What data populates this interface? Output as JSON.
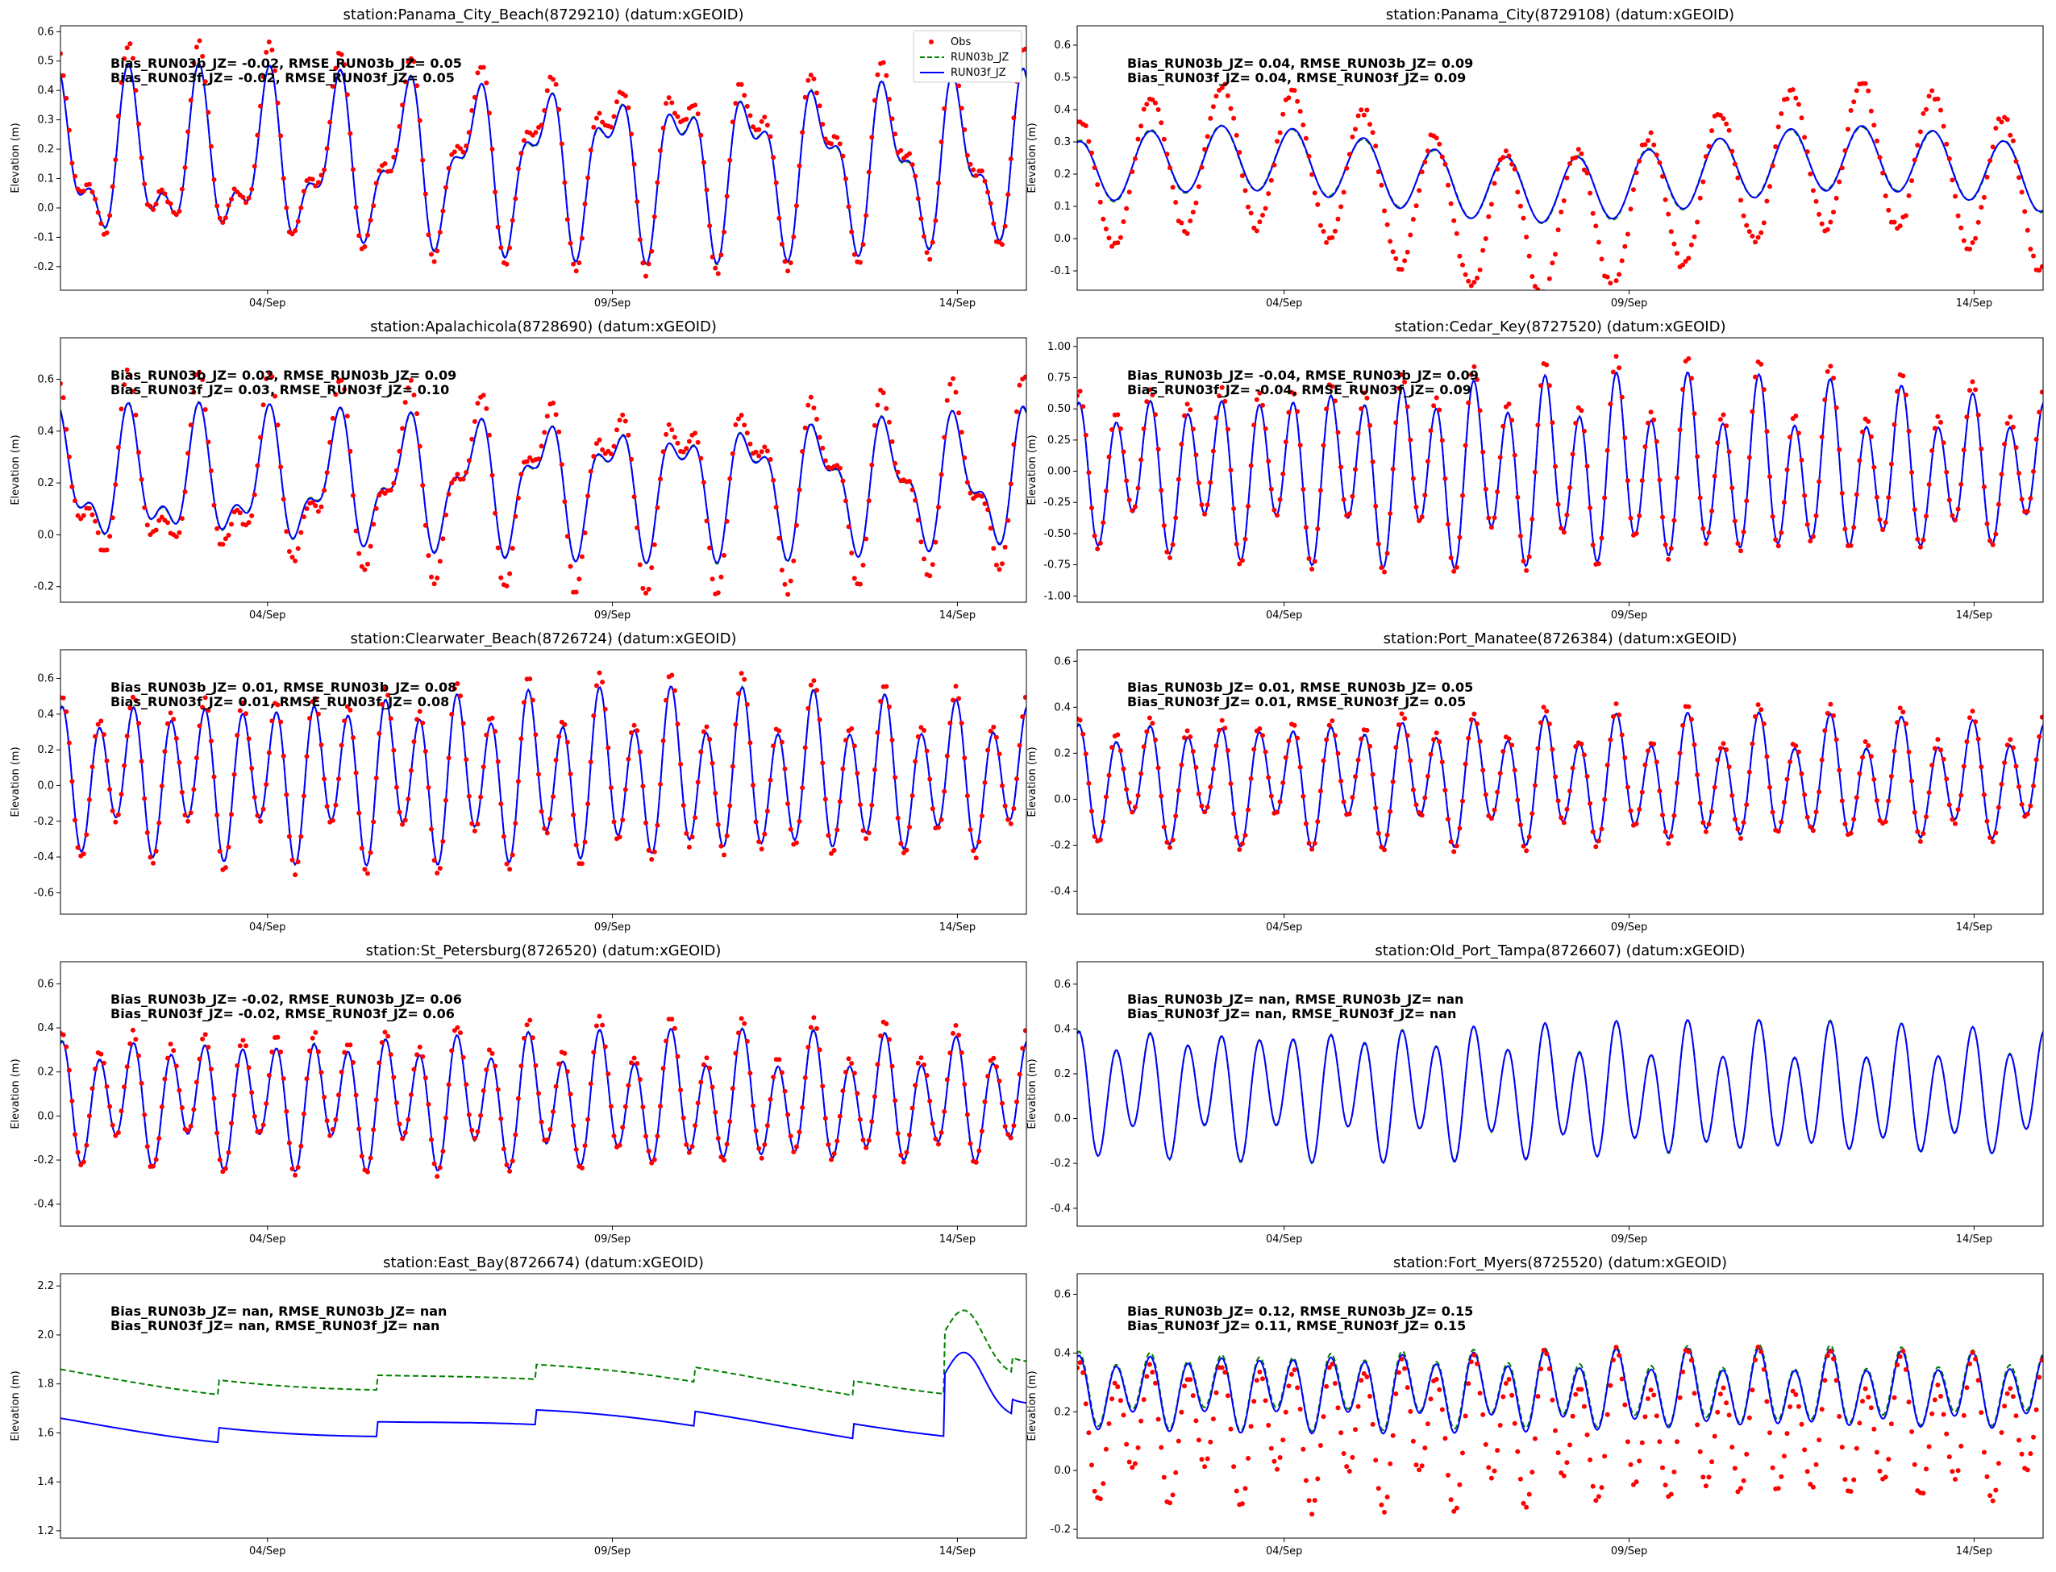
{
  "figure": {
    "legend": [
      {
        "name": "Obs",
        "style": "points",
        "color": "#ff0000"
      },
      {
        "name": "RUN03b_JZ",
        "style": "dashed",
        "color": "#008000"
      },
      {
        "name": "RUN03f_JZ",
        "style": "solid",
        "color": "#0000ff"
      }
    ],
    "x_tick_labels": [
      "04/Sep",
      "09/Sep",
      "14/Sep"
    ],
    "ylabel": "Elevation (m)"
  },
  "chart_data": [
    {
      "type": "line",
      "title": "station:Panama_City_Beach(8729210) (datum:xGEOID)",
      "xlabel": "",
      "ylabel": "Elevation (m)",
      "x_range_days": [
        1.0,
        15.0
      ],
      "x_ticks": [
        {
          "day": 4,
          "label": "04/Sep"
        },
        {
          "day": 9,
          "label": "09/Sep"
        },
        {
          "day": 14,
          "label": "14/Sep"
        }
      ],
      "ylim": [
        -0.28,
        0.62
      ],
      "yticks": [
        -0.2,
        -0.1,
        0.0,
        0.1,
        0.2,
        0.3,
        0.4,
        0.5,
        0.6
      ],
      "stats": [
        "Bias_RUN03b_JZ= -0.02, RMSE_RUN03b_JZ=  0.05",
        "Bias_RUN03f_JZ= -0.02, RMSE_RUN03f_JZ=  0.05"
      ],
      "legend": "top-right",
      "series_params": {
        "mean": 0.15,
        "amp": 0.22,
        "amp_growth": 0.0,
        "tide": "mixed",
        "obs_offset": 0.02,
        "obs_scale": 1.15,
        "b_offset": 0.0,
        "has_obs": true,
        "seed": 1
      }
    },
    {
      "type": "line",
      "title": "station:Panama_City(8729108) (datum:xGEOID)",
      "xlabel": "",
      "ylabel": "Elevation (m)",
      "x_range_days": [
        1.0,
        15.0
      ],
      "x_ticks": [
        {
          "day": 4,
          "label": "04/Sep"
        },
        {
          "day": 9,
          "label": "09/Sep"
        },
        {
          "day": 14,
          "label": "14/Sep"
        }
      ],
      "ylim": [
        -0.16,
        0.66
      ],
      "yticks": [
        -0.1,
        0.0,
        0.1,
        0.2,
        0.3,
        0.4,
        0.5,
        0.6
      ],
      "stats": [
        "Bias_RUN03b_JZ=  0.04, RMSE_RUN03b_JZ=  0.09",
        "Bias_RUN03f_JZ=  0.04, RMSE_RUN03f_JZ=  0.09"
      ],
      "legend": "none",
      "series_params": {
        "mean": 0.2,
        "amp": 0.1,
        "amp_growth": 0.0,
        "tide": "diurnal",
        "obs_offset": -0.05,
        "obs_scale": 2.2,
        "b_offset": 0.0,
        "has_obs": true,
        "seed": 2
      }
    },
    {
      "type": "line",
      "title": "station:Apalachicola(8728690) (datum:xGEOID)",
      "xlabel": "",
      "ylabel": "Elevation (m)",
      "x_range_days": [
        1.0,
        15.0
      ],
      "x_ticks": [
        {
          "day": 4,
          "label": "04/Sep"
        },
        {
          "day": 9,
          "label": "09/Sep"
        },
        {
          "day": 14,
          "label": "14/Sep"
        }
      ],
      "ylim": [
        -0.26,
        0.76
      ],
      "yticks": [
        -0.2,
        0.0,
        0.2,
        0.4,
        0.6
      ],
      "stats": [
        "Bias_RUN03b_JZ=  0.02, RMSE_RUN03b_JZ=  0.09",
        "Bias_RUN03f_JZ=  0.03, RMSE_RUN03f_JZ=  0.10"
      ],
      "legend": "none",
      "series_params": {
        "mean": 0.2,
        "amp": 0.2,
        "amp_growth": 0.0,
        "tide": "mixed",
        "obs_offset": 0.0,
        "obs_scale": 1.4,
        "b_offset": 0.0,
        "has_obs": true,
        "seed": 3
      }
    },
    {
      "type": "line",
      "title": "station:Cedar_Key(8727520) (datum:xGEOID)",
      "xlabel": "",
      "ylabel": "Elevation (m)",
      "x_range_days": [
        1.0,
        15.0
      ],
      "x_ticks": [
        {
          "day": 4,
          "label": "04/Sep"
        },
        {
          "day": 9,
          "label": "09/Sep"
        },
        {
          "day": 14,
          "label": "14/Sep"
        }
      ],
      "ylim": [
        -1.05,
        1.07
      ],
      "yticks": [
        -1.0,
        -0.75,
        -0.5,
        -0.25,
        0.0,
        0.25,
        0.5,
        0.75,
        1.0
      ],
      "stats": [
        "Bias_RUN03b_JZ= -0.04, RMSE_RUN03b_JZ=  0.09",
        "Bias_RUN03f_JZ= -0.04, RMSE_RUN03f_JZ=  0.09"
      ],
      "legend": "none",
      "series_params": {
        "mean": 0.0,
        "amp": 0.45,
        "amp_growth": 0.35,
        "tide": "semi",
        "obs_offset": 0.04,
        "obs_scale": 1.1,
        "b_offset": 0.0,
        "has_obs": true,
        "seed": 4
      }
    },
    {
      "type": "line",
      "title": "station:Clearwater_Beach(8726724) (datum:xGEOID)",
      "xlabel": "",
      "ylabel": "Elevation (m)",
      "x_range_days": [
        1.0,
        15.0
      ],
      "x_ticks": [
        {
          "day": 4,
          "label": "04/Sep"
        },
        {
          "day": 9,
          "label": "09/Sep"
        },
        {
          "day": 14,
          "label": "14/Sep"
        }
      ],
      "ylim": [
        -0.72,
        0.76
      ],
      "yticks": [
        -0.6,
        -0.4,
        -0.2,
        0.0,
        0.2,
        0.4,
        0.6
      ],
      "stats": [
        "Bias_RUN03b_JZ=  0.01, RMSE_RUN03b_JZ=  0.08",
        "Bias_RUN03f_JZ=  0.01, RMSE_RUN03f_JZ=  0.08"
      ],
      "legend": "none",
      "series_params": {
        "mean": 0.05,
        "amp": 0.32,
        "amp_growth": 0.2,
        "tide": "semi",
        "obs_offset": 0.01,
        "obs_scale": 1.12,
        "b_offset": 0.0,
        "has_obs": true,
        "seed": 5
      }
    },
    {
      "type": "line",
      "title": "station:Port_Manatee(8726384) (datum:xGEOID)",
      "xlabel": "",
      "ylabel": "Elevation (m)",
      "x_range_days": [
        1.0,
        15.0
      ],
      "x_ticks": [
        {
          "day": 4,
          "label": "04/Sep"
        },
        {
          "day": 9,
          "label": "09/Sep"
        },
        {
          "day": 14,
          "label": "14/Sep"
        }
      ],
      "ylim": [
        -0.5,
        0.65
      ],
      "yticks": [
        -0.4,
        -0.2,
        0.0,
        0.2,
        0.4,
        0.6
      ],
      "stats": [
        "Bias_RUN03b_JZ=  0.01, RMSE_RUN03b_JZ=  0.05",
        "Bias_RUN03f_JZ=  0.01, RMSE_RUN03f_JZ=  0.05"
      ],
      "legend": "none",
      "series_params": {
        "mean": 0.08,
        "amp": 0.2,
        "amp_growth": 0.12,
        "tide": "semi",
        "obs_offset": 0.01,
        "obs_scale": 1.08,
        "b_offset": 0.0,
        "has_obs": true,
        "seed": 6
      }
    },
    {
      "type": "line",
      "title": "station:St_Petersburg(8726520) (datum:xGEOID)",
      "xlabel": "",
      "ylabel": "Elevation (m)",
      "x_range_days": [
        1.0,
        15.0
      ],
      "x_ticks": [
        {
          "day": 4,
          "label": "04/Sep"
        },
        {
          "day": 9,
          "label": "09/Sep"
        },
        {
          "day": 14,
          "label": "14/Sep"
        }
      ],
      "ylim": [
        -0.5,
        0.7
      ],
      "yticks": [
        -0.4,
        -0.2,
        0.0,
        0.2,
        0.4,
        0.6
      ],
      "stats": [
        "Bias_RUN03b_JZ= -0.02, RMSE_RUN03b_JZ=  0.06",
        "Bias_RUN03f_JZ= -0.02, RMSE_RUN03f_JZ=  0.06"
      ],
      "legend": "none",
      "series_params": {
        "mean": 0.07,
        "amp": 0.22,
        "amp_growth": 0.12,
        "tide": "semi",
        "obs_offset": 0.02,
        "obs_scale": 1.1,
        "b_offset": 0.0,
        "has_obs": true,
        "seed": 7
      }
    },
    {
      "type": "line",
      "title": "station:Old_Port_Tampa(8726607) (datum:xGEOID)",
      "xlabel": "",
      "ylabel": "Elevation (m)",
      "x_range_days": [
        1.0,
        15.0
      ],
      "x_ticks": [
        {
          "day": 4,
          "label": "04/Sep"
        },
        {
          "day": 9,
          "label": "09/Sep"
        },
        {
          "day": 14,
          "label": "14/Sep"
        }
      ],
      "ylim": [
        -0.48,
        0.7
      ],
      "yticks": [
        -0.4,
        -0.2,
        0.0,
        0.2,
        0.4,
        0.6
      ],
      "stats": [
        "Bias_RUN03b_JZ=   nan, RMSE_RUN03b_JZ=   nan",
        "Bias_RUN03f_JZ=   nan, RMSE_RUN03f_JZ=   nan"
      ],
      "legend": "none",
      "series_params": {
        "mean": 0.12,
        "amp": 0.22,
        "amp_growth": 0.1,
        "tide": "semi",
        "obs_offset": 0.0,
        "obs_scale": 1.0,
        "b_offset": 0.0,
        "has_obs": false,
        "seed": 8
      }
    },
    {
      "type": "line",
      "title": "station:East_Bay(8726674) (datum:xGEOID)",
      "xlabel": "",
      "ylabel": "Elevation (m)",
      "x_range_days": [
        1.0,
        15.0
      ],
      "x_ticks": [
        {
          "day": 4,
          "label": "04/Sep"
        },
        {
          "day": 9,
          "label": "09/Sep"
        },
        {
          "day": 14,
          "label": "14/Sep"
        }
      ],
      "ylim": [
        1.17,
        2.25
      ],
      "yticks": [
        1.2,
        1.4,
        1.6,
        1.8,
        2.0,
        2.2
      ],
      "stats": [
        "Bias_RUN03b_JZ=   nan, RMSE_RUN03b_JZ=   nan",
        "Bias_RUN03f_JZ=   nan, RMSE_RUN03f_JZ=   nan"
      ],
      "legend": "none",
      "series_params": {
        "mean": 1.62,
        "amp": 0.0,
        "amp_growth": 0.0,
        "tide": "drift",
        "obs_offset": 0.0,
        "obs_scale": 1.0,
        "b_offset": 0.0,
        "has_obs": false,
        "seed": 9
      }
    },
    {
      "type": "line",
      "title": "station:Fort_Myers(8725520) (datum:xGEOID)",
      "xlabel": "",
      "ylabel": "Elevation (m)",
      "x_range_days": [
        1.0,
        15.0
      ],
      "x_ticks": [
        {
          "day": 4,
          "label": "04/Sep"
        },
        {
          "day": 9,
          "label": "09/Sep"
        },
        {
          "day": 14,
          "label": "14/Sep"
        }
      ],
      "ylim": [
        -0.23,
        0.67
      ],
      "yticks": [
        -0.2,
        0.0,
        0.2,
        0.4,
        0.6
      ],
      "stats": [
        "Bias_RUN03b_JZ=  0.12, RMSE_RUN03b_JZ=  0.15",
        "Bias_RUN03f_JZ=  0.11, RMSE_RUN03f_JZ=  0.15"
      ],
      "legend": "none",
      "series_params": {
        "mean": 0.27,
        "amp": 0.1,
        "amp_growth": 0.1,
        "tide": "semi",
        "obs_offset": -0.13,
        "obs_scale": 1.9,
        "b_offset": 0.01,
        "has_obs": true,
        "seed": 10
      }
    }
  ]
}
